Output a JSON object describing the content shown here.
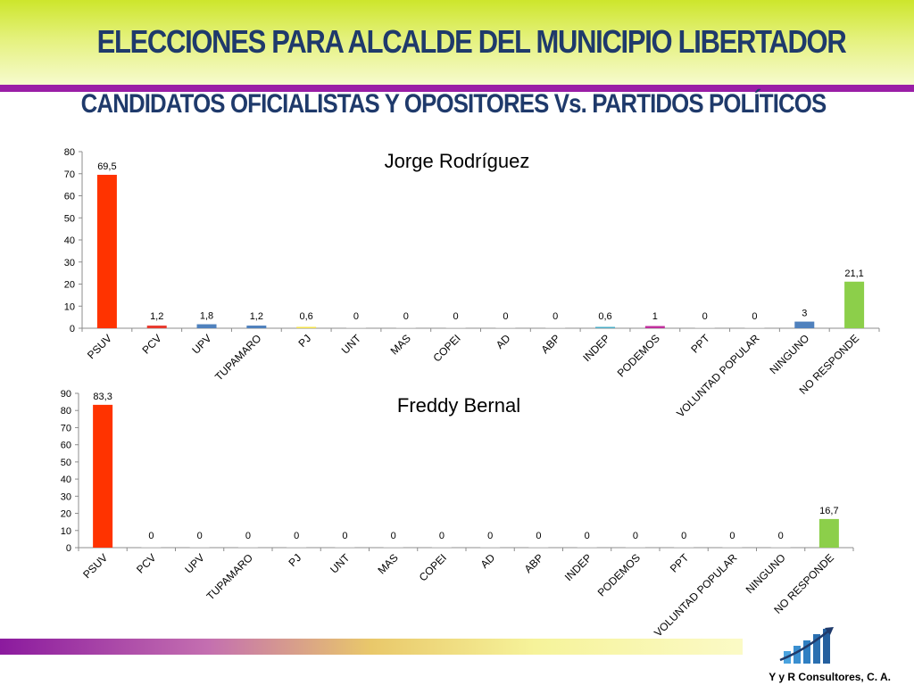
{
  "header": {
    "title": "ELECCIONES PARA ALCALDE DEL MUNICIPIO LIBERTADOR",
    "subtitle": "CANDIDATOS OFICIALISTAS Y OPOSITORES Vs. PARTIDOS POLÍTICOS"
  },
  "footer": {
    "company": "Y y R Consultores, C. A."
  },
  "chart_data": [
    {
      "type": "bar",
      "title": "Jorge Rodríguez",
      "categories": [
        "PSUV",
        "PCV",
        "UPV",
        "TUPAMARO",
        "PJ",
        "UNT",
        "MAS",
        "COPEI",
        "AD",
        "ABP",
        "INDEP",
        "PODEMOS",
        "PPT",
        "VOLUNTAD POPULAR",
        "NINGUNO",
        "NO RESPONDE"
      ],
      "values": [
        69.5,
        1.2,
        1.8,
        1.2,
        0.6,
        0,
        0,
        0,
        0,
        0,
        0.6,
        1,
        0,
        0,
        3,
        21.1
      ],
      "value_labels": [
        "69,5",
        "1,2",
        "1,8",
        "1,2",
        "0,6",
        "0",
        "0",
        "0",
        "0",
        "0",
        "0,6",
        "1",
        "0",
        "0",
        "3",
        "21,1"
      ],
      "ylim": [
        0,
        80
      ],
      "yticks": [
        "0",
        "10",
        "20",
        "30",
        "40",
        "50",
        "60",
        "70",
        "80"
      ],
      "colors": [
        "#ff3300",
        "#e83a2e",
        "#4f81bd",
        "#4f81bd",
        "#f2e14c",
        "#cccccc",
        "#cccccc",
        "#cccccc",
        "#cccccc",
        "#cccccc",
        "#4bacc6",
        "#c0309c",
        "#cccccc",
        "#cccccc",
        "#4f81bd",
        "#8ccf4a"
      ],
      "grid": false,
      "legend": "none"
    },
    {
      "type": "bar",
      "title": "Freddy Bernal",
      "categories": [
        "PSUV",
        "PCV",
        "UPV",
        "TUPAMARO",
        "PJ",
        "UNT",
        "MAS",
        "COPEI",
        "AD",
        "ABP",
        "INDEP",
        "PODEMOS",
        "PPT",
        "VOLUNTAD POPULAR",
        "NINGUNO",
        "NO RESPONDE"
      ],
      "values": [
        83.3,
        0,
        0,
        0,
        0,
        0,
        0,
        0,
        0,
        0,
        0,
        0,
        0,
        0,
        0,
        16.7
      ],
      "value_labels": [
        "83,3",
        "0",
        "0",
        "0",
        "0",
        "0",
        "0",
        "0",
        "0",
        "0",
        "0",
        "0",
        "0",
        "0",
        "0",
        "16,7"
      ],
      "ylim": [
        0,
        90
      ],
      "yticks": [
        "0",
        "10",
        "20",
        "30",
        "40",
        "50",
        "60",
        "70",
        "80",
        "90"
      ],
      "colors": [
        "#ff3300",
        "#cccccc",
        "#cccccc",
        "#cccccc",
        "#cccccc",
        "#cccccc",
        "#cccccc",
        "#cccccc",
        "#cccccc",
        "#cccccc",
        "#cccccc",
        "#cccccc",
        "#cccccc",
        "#cccccc",
        "#cccccc",
        "#8ccf4a"
      ],
      "grid": false,
      "legend": "none"
    }
  ]
}
